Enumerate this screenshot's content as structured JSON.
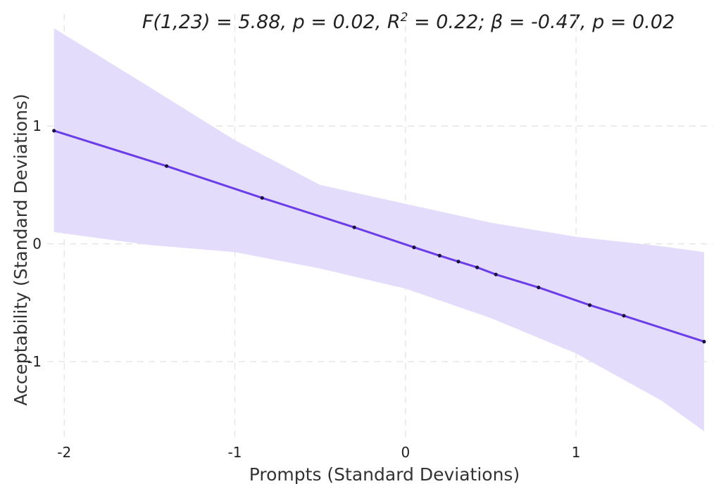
{
  "chart_data": {
    "type": "line",
    "title_parts": {
      "p1": "F(1,23) = 5.88, p = 0.02, R",
      "sup": "2",
      "p2": " = 0.22; β = -0.47, p = 0.02"
    },
    "xlabel": "Prompts (Standard Deviations)",
    "ylabel": "Acceptability (Standard Deviations)",
    "xlim": [
      -2.1,
      1.8
    ],
    "ylim": [
      -1.65,
      1.95
    ],
    "x_ticks": [
      -2,
      -1,
      0,
      1
    ],
    "x_tick_labels": [
      "-2",
      "-1",
      "0",
      "1"
    ],
    "y_ticks": [
      -1,
      0,
      1
    ],
    "y_tick_labels": [
      "-1",
      "0",
      "1"
    ],
    "grid": true,
    "series": [
      {
        "x": [
          -2.06,
          -1.4,
          -0.84,
          -0.3,
          0.05,
          0.2,
          0.31,
          0.42,
          0.53,
          0.78,
          1.08,
          1.28,
          1.75
        ],
        "y": [
          0.96,
          0.66,
          0.39,
          0.14,
          -0.03,
          -0.1,
          -0.15,
          -0.2,
          -0.26,
          -0.37,
          -0.52,
          -0.61,
          -0.83
        ]
      }
    ],
    "confidence_band": {
      "x": [
        -2.06,
        -1.5,
        -1.0,
        -0.5,
        0.0,
        0.5,
        1.0,
        1.5,
        1.75
      ],
      "upper": [
        1.83,
        1.33,
        0.88,
        0.5,
        0.34,
        0.18,
        0.06,
        -0.02,
        -0.07
      ],
      "lower": [
        0.1,
        -0.01,
        -0.07,
        -0.21,
        -0.38,
        -0.63,
        -0.93,
        -1.33,
        -1.59
      ]
    },
    "colors": {
      "line": "#6a3de8",
      "band": "#e4dcfb",
      "point": "#1a1240",
      "grid": "#e2e2e2"
    }
  }
}
